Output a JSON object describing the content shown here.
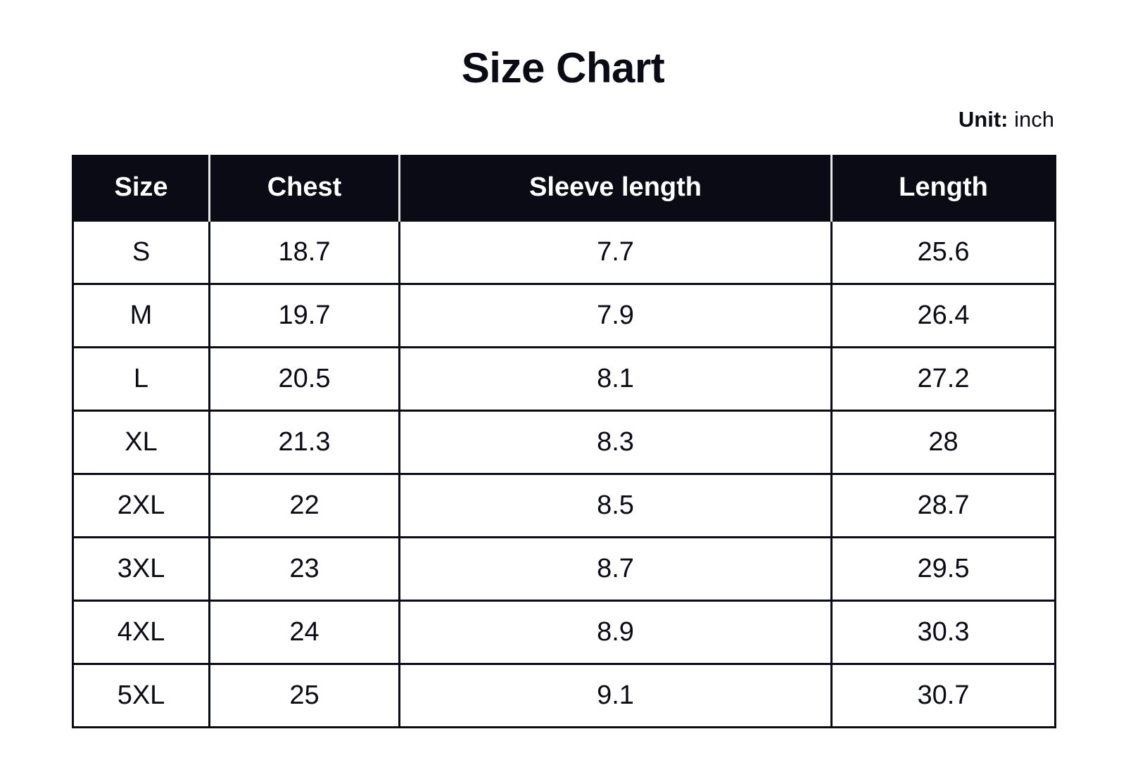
{
  "header": {
    "title": "Size Chart",
    "unit_label": "Unit:",
    "unit_value": "inch"
  },
  "table": {
    "columns": [
      "Size",
      "Chest",
      "Sleeve length",
      "Length"
    ],
    "rows": [
      [
        "S",
        "18.7",
        "7.7",
        "25.6"
      ],
      [
        "M",
        "19.7",
        "7.9",
        "26.4"
      ],
      [
        "L",
        "20.5",
        "8.1",
        "27.2"
      ],
      [
        "XL",
        "21.3",
        "8.3",
        "28"
      ],
      [
        "2XL",
        "22",
        "8.5",
        "28.7"
      ],
      [
        "3XL",
        "23",
        "8.7",
        "29.5"
      ],
      [
        "4XL",
        "24",
        "8.9",
        "30.3"
      ],
      [
        "5XL",
        "25",
        "9.1",
        "30.7"
      ]
    ]
  }
}
